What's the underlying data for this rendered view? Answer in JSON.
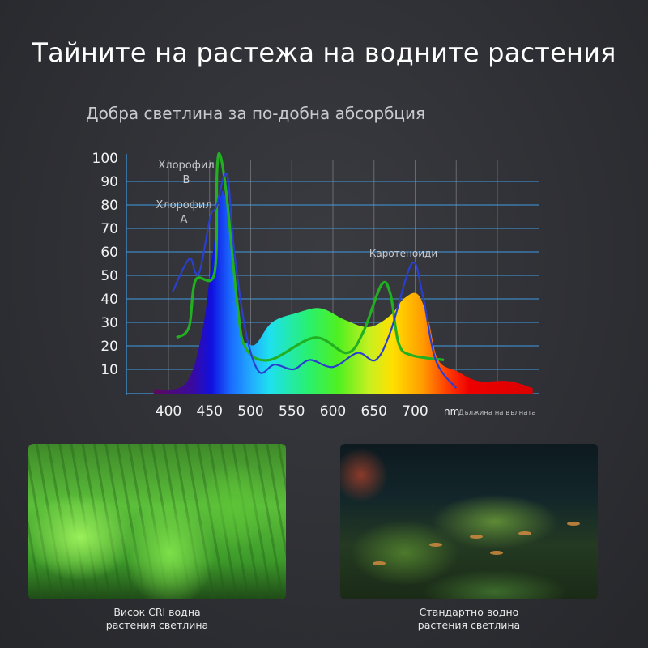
{
  "header": {
    "title": "Тайните на растежа на водните растения",
    "subtitle": "Добра светлина за по-добна абсорбция"
  },
  "chart_data": {
    "type": "area",
    "title": "",
    "xlabel_unit": "nm",
    "xlabel": "Дължина на вълната",
    "ylabel": "",
    "xlim": [
      380,
      845
    ],
    "ylim": [
      0,
      100
    ],
    "grid": true,
    "x_ticks": [
      400,
      450,
      500,
      550,
      600,
      650,
      700
    ],
    "y_ticks": [
      10,
      20,
      30,
      40,
      50,
      60,
      70,
      80,
      90,
      100
    ],
    "annotations": [
      {
        "lines": [
          "Хлорофил",
          "B"
        ]
      },
      {
        "lines": [
          "Хлорофил",
          "A"
        ]
      },
      {
        "lines": [
          "Каротеноиди"
        ]
      }
    ],
    "series": [
      {
        "kind": "spectrum-fill",
        "x": [
          382,
          421,
          441,
          454,
          466,
          477,
          488,
          497,
          507,
          526,
          556,
          585,
          615,
          644,
          670,
          686,
          703,
          716,
          728,
          752,
          777,
          814,
          843
        ],
        "y": [
          1.5,
          4,
          26,
          60,
          86,
          62,
          26,
          21,
          21,
          30,
          34,
          36,
          31,
          28,
          33,
          40,
          42,
          31,
          14,
          9,
          5,
          5,
          2
        ]
      },
      {
        "kind": "line",
        "color": "#22b022",
        "x": [
          410,
          425,
          433,
          456,
          459,
          463,
          471,
          484,
          494,
          523,
          578,
          617,
          637,
          659,
          670,
          680,
          696,
          735
        ],
        "y": [
          23.5,
          28,
          48,
          51,
          94,
          101,
          83,
          37,
          19,
          14,
          23.5,
          17,
          26,
          46,
          42,
          21,
          16,
          14
        ]
      },
      {
        "kind": "line",
        "color": "#2a3fd0",
        "x": [
          405,
          425,
          433,
          439,
          451,
          458,
          471,
          480,
          494,
          510,
          529,
          552,
          572,
          600,
          630,
          652,
          670,
          696,
          709,
          725,
          750
        ],
        "y": [
          43,
          57,
          51,
          53,
          75,
          79,
          93,
          60,
          26,
          9,
          12,
          10,
          14,
          11,
          17,
          14,
          26,
          55,
          42,
          14,
          2
        ]
      }
    ]
  },
  "photos": [
    {
      "caption_line1": "Висок CRI водна",
      "caption_line2": "растения светлина"
    },
    {
      "caption_line1": "Стандартно водно",
      "caption_line2": "растения светлина"
    }
  ]
}
